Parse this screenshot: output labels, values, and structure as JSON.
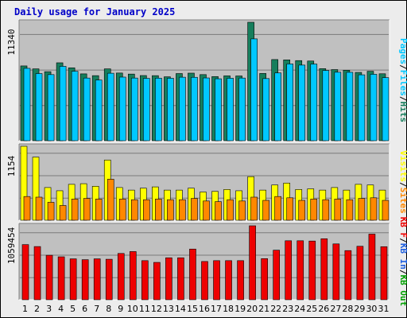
{
  "chart_data": {
    "type": "bar",
    "title": "Daily usage for January 2025",
    "categories": [
      "1",
      "2",
      "3",
      "4",
      "5",
      "6",
      "7",
      "8",
      "9",
      "10",
      "11",
      "12",
      "13",
      "14",
      "15",
      "16",
      "17",
      "18",
      "19",
      "20",
      "21",
      "22",
      "23",
      "24",
      "25",
      "26",
      "27",
      "28",
      "29",
      "30",
      "31"
    ],
    "weekend_days": [
      "4",
      "5",
      "11",
      "12",
      "18",
      "19",
      "25",
      "26"
    ],
    "colors": {
      "hits": "#167e5c",
      "files": "#00c8ff",
      "visits": "#ffff00",
      "sites": "#ff8800",
      "kbin": "#2060e0",
      "kbout": "#00a000",
      "kbf": "#ee0000",
      "weekend_label": "#008040",
      "weekday_label": "#000000",
      "title": "#0000c8",
      "plot_bg": "#c0c0c0",
      "frame_bg": "#ececec"
    },
    "panels": [
      {
        "id": "hits-files",
        "ymax_label": "11340",
        "ymax": 11340,
        "legend": [
          "Pages",
          "/",
          "Files",
          "/",
          "Hits"
        ],
        "legend_colors": [
          "#00c8ff",
          "#000000",
          "#00c8ff",
          "#000000",
          "#167e5c"
        ],
        "series": [
          {
            "name": "Hits",
            "values": [
              7160,
              6880,
              6610,
              7460,
              6980,
              6400,
              6230,
              6880,
              6480,
              6380,
              6240,
              6230,
              6120,
              6430,
              6470,
              6330,
              6140,
              6210,
              6200,
              11340,
              6440,
              7770,
              7740,
              7670,
              7630,
              6900,
              6810,
              6750,
              6540,
              6650,
              6410
            ]
          },
          {
            "name": "Files",
            "values": [
              6930,
              6430,
              6330,
              7120,
              6650,
              6000,
              5810,
              6460,
              6090,
              6000,
              5970,
              5990,
              5980,
              6080,
              6070,
              6010,
              5930,
              5980,
              6000,
              9750,
              5950,
              6490,
              7350,
              7240,
              7340,
              6720,
              6560,
              6550,
              6310,
              6360,
              6040
            ]
          }
        ]
      },
      {
        "id": "visits-sites",
        "ymax_label": "1154",
        "ymax": 1154,
        "legend": [
          "Visits",
          "/",
          "Sites"
        ],
        "legend_colors": [
          "#ffff00",
          "#000000",
          "#ff8800"
        ],
        "series": [
          {
            "name": "Visits",
            "values": [
              1154,
              985,
              510,
              460,
              560,
              570,
              530,
              940,
              510,
              470,
              500,
              520,
              470,
              470,
              500,
              440,
              450,
              480,
              460,
              680,
              470,
              550,
              580,
              480,
              490,
              470,
              510,
              470,
              560,
              550,
              470
            ]
          },
          {
            "name": "Sites",
            "values": [
              370,
              360,
              280,
              230,
              330,
              340,
              330,
              640,
              330,
              320,
              320,
              330,
              320,
              320,
              340,
              300,
              290,
              320,
              300,
              360,
              310,
              370,
              350,
              310,
              330,
              320,
              330,
              320,
              340,
              350,
              310
            ]
          }
        ]
      },
      {
        "id": "kbytes",
        "ymax_label": "1059454",
        "ymax": 1059454,
        "legend": [
          "KB F",
          "/",
          "KB In",
          "/",
          "KB Out"
        ],
        "legend_colors": [
          "#ee0000",
          "#000000",
          "#2060e0",
          "#000000",
          "#00a000"
        ],
        "series": [
          {
            "name": "KB F",
            "values": [
              790000,
              762000,
              637000,
              615000,
              586000,
              574000,
              586000,
              580000,
              663000,
              690000,
              560000,
              535000,
              601000,
              601000,
              726000,
              548000,
              560000,
              560000,
              560000,
              1059454,
              589000,
              710000,
              845000,
              845000,
              841000,
              874000,
              800000,
              704000,
              766000,
              940000,
              760000
            ]
          }
        ]
      }
    ]
  }
}
